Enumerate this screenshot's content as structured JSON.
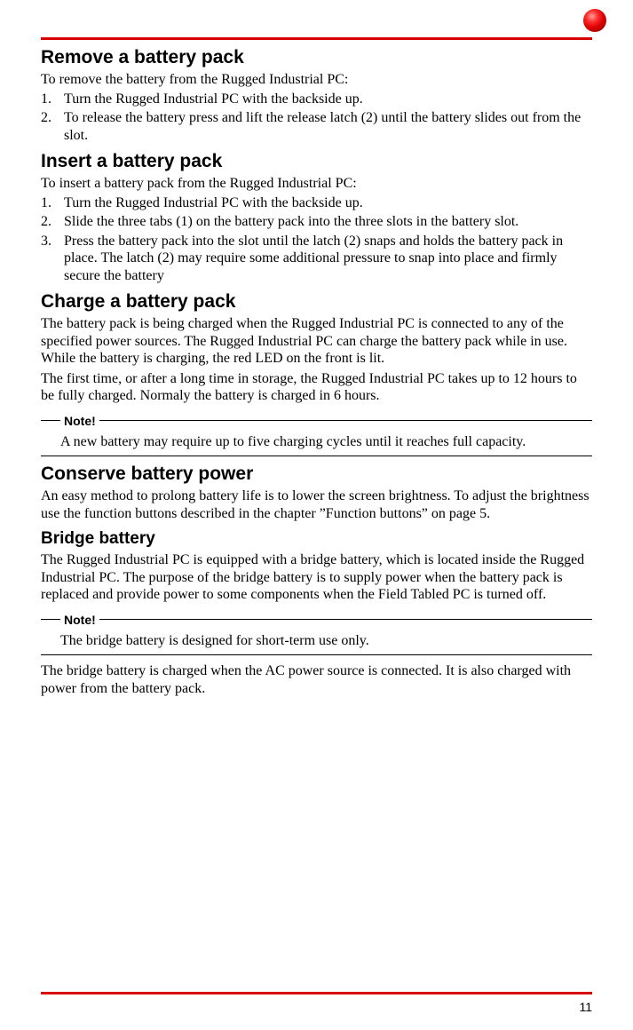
{
  "colors": {
    "accent": "#d80000",
    "text": "#000000",
    "background": "#ffffff"
  },
  "typography": {
    "heading_font": "Arial",
    "body_font": "Times New Roman",
    "h2_size_pt": 16,
    "body_size_pt": 12,
    "note_label_size_pt": 11
  },
  "page_number": "11",
  "sections": {
    "remove": {
      "heading": "Remove a battery pack",
      "intro": "To remove the battery from the Rugged Industrial PC:",
      "steps": [
        "Turn the Rugged Industrial PC with the backside up.",
        "To release the battery press and lift the release latch (2) until the battery slides out from the slot."
      ]
    },
    "insert": {
      "heading": "Insert a battery pack",
      "intro": "To insert a battery pack from the Rugged Industrial PC:",
      "steps": [
        "Turn the Rugged Industrial PC with the backside up.",
        "Slide the three tabs (1) on the battery pack into the three slots in the battery slot.",
        "Press the battery pack into the slot until the latch (2) snaps and holds the battery pack in place. The latch (2) may require some additional pressure to snap into place and firmly secure the battery"
      ]
    },
    "charge": {
      "heading": "Charge a battery pack",
      "para1": "The battery pack is being charged when the Rugged Industrial PC is connected to any of the specified power sources. The Rugged Industrial PC can charge the battery pack while in use. While the battery is charging, the red LED on the front is lit.",
      "para2": "The first time, or after a long time in storage, the Rugged Industrial PC takes up to 12 hours to be fully charged. Normaly the battery is charged in 6 hours.",
      "note_label": "Note!",
      "note_text": "A new battery may require up to five charging cycles until it reaches full capacity."
    },
    "conserve": {
      "heading": "Conserve battery power",
      "para": "An easy method to prolong battery life is to lower the screen brightness. To adjust the brightness use the function buttons described in the chapter  ”Function buttons” on page 5."
    },
    "bridge": {
      "heading": "Bridge battery",
      "para1": "The Rugged Industrial PC is equipped with a bridge battery, which is located inside the Rugged Industrial PC. The purpose of the bridge battery is to supply power when the battery pack is replaced and provide power to some components when the Field Tabled PC is turned off.",
      "note_label": "Note!",
      "note_text": "The bridge battery is designed for short-term use only.",
      "para2": "The bridge battery is charged when the AC power source is connected. It is also charged with power from the battery pack."
    }
  }
}
